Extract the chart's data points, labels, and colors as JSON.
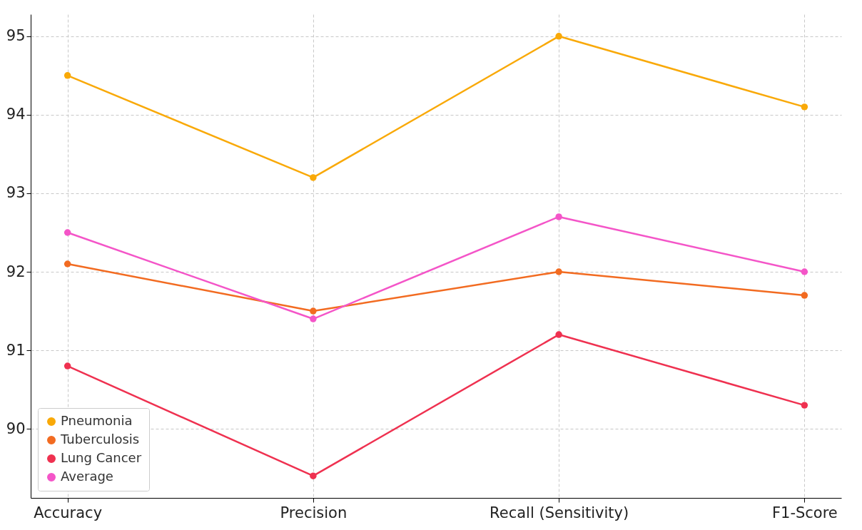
{
  "chart_data": {
    "type": "line",
    "categories": [
      "Accuracy",
      "Precision",
      "Recall (Sensitivity)",
      "F1-Score"
    ],
    "series": [
      {
        "name": "Pneumonia",
        "color": "#f9a908",
        "values": [
          94.5,
          93.2,
          95.0,
          94.1
        ]
      },
      {
        "name": "Tuberculosis",
        "color": "#f26b21",
        "values": [
          92.1,
          91.5,
          92.0,
          91.7
        ]
      },
      {
        "name": "Lung Cancer",
        "color": "#ef3150",
        "values": [
          90.8,
          89.4,
          91.2,
          90.3
        ]
      },
      {
        "name": "Average",
        "color": "#f455c8",
        "values": [
          92.5,
          91.4,
          92.7,
          92.0
        ]
      }
    ],
    "ylim": [
      89.12,
      95.28
    ],
    "yticks": [
      90,
      91,
      92,
      93,
      94,
      95
    ],
    "grid": true,
    "legend": "bottom left",
    "marker": "circle",
    "line_style": "solid"
  }
}
